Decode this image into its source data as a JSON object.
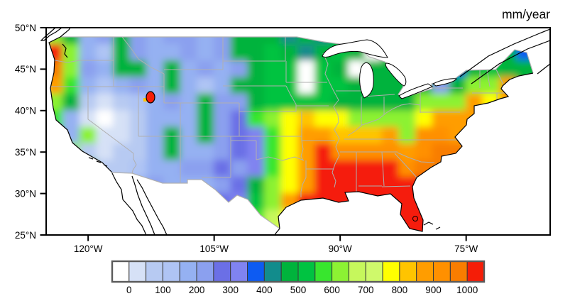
{
  "title": "mm/year",
  "axes": {
    "y_ticks": [
      {
        "label": "50°N",
        "lat": 50
      },
      {
        "label": "45°N",
        "lat": 45
      },
      {
        "label": "40°N",
        "lat": 40
      },
      {
        "label": "35°N",
        "lat": 35
      },
      {
        "label": "30°N",
        "lat": 30
      },
      {
        "label": "25°N",
        "lat": 25
      }
    ],
    "x_ticks": [
      {
        "label": "120°W",
        "lon": -120
      },
      {
        "label": "105°W",
        "lon": -105
      },
      {
        "label": "90°W",
        "lon": -90
      },
      {
        "label": "75°W",
        "lon": -75
      }
    ]
  },
  "colorbar": {
    "labels": [
      "0",
      "100",
      "200",
      "300",
      "400",
      "500",
      "600",
      "700",
      "800",
      "900",
      "1000"
    ]
  },
  "chart_data": {
    "type": "filled_contour_map",
    "title": "mm/year",
    "units": "mm/year",
    "region": "Continental United States",
    "lon_range": [
      -125,
      -65
    ],
    "lat_range": [
      25,
      50
    ],
    "levels": [
      0,
      50,
      100,
      150,
      200,
      250,
      300,
      350,
      400,
      450,
      500,
      550,
      600,
      650,
      700,
      750,
      800,
      850,
      900,
      950,
      1000
    ],
    "palette": [
      "#FFFFFF",
      "#D6E1F6",
      "#B7CAF2",
      "#AFC4F4",
      "#95B1F2",
      "#8BA0EF",
      "#6B6FE6",
      "#8083F0",
      "#0D5BF2",
      "#128C8C",
      "#00B33C",
      "#00C341",
      "#38E62E",
      "#8CF233",
      "#C6F75C",
      "#CFF96B",
      "#FFFF00",
      "#FFC400",
      "#FF9D00",
      "#FF9000",
      "#F87D00",
      "#F51D07"
    ],
    "palette_letters": "abcdefghijklmnopqrstuv",
    "grid_deg": 2,
    "grid_origin": {
      "lon": -125,
      "lat": 50
    },
    "grid_rows": [
      "nkefkfeffefkkkjkjkaakkkkkkkikk",
      "vnedkfeefefkklkjklkakkkkkkkkik",
      "unfekkekefefkllalkakkkihiklkkk",
      "smedefekedekkllallkkkkkfknnskk",
      "nkcbcdefekffkllllkkkkknnnsqskk",
      "mebabceeekfgmnqrqqnnnnqssskkkk",
      "lenbbcekekfghmqssrrrsnttsskkkk",
      "kncbccekeefghmqsvttttstuukkkkk",
      "kkkccdeeffgfhmqsvvvvvtuuukkkkk",
      "edccdefeeefgknqsvvvvvvvuvvkkkk",
      "edccdefffgghlnsvvvvvvvvvvvkkkk",
      "edccdeffgghhmoqvvvvvvvvvvvkkkk",
      "edccdeffgghhmoqvvvvvvvvvvvkkkk"
    ]
  }
}
